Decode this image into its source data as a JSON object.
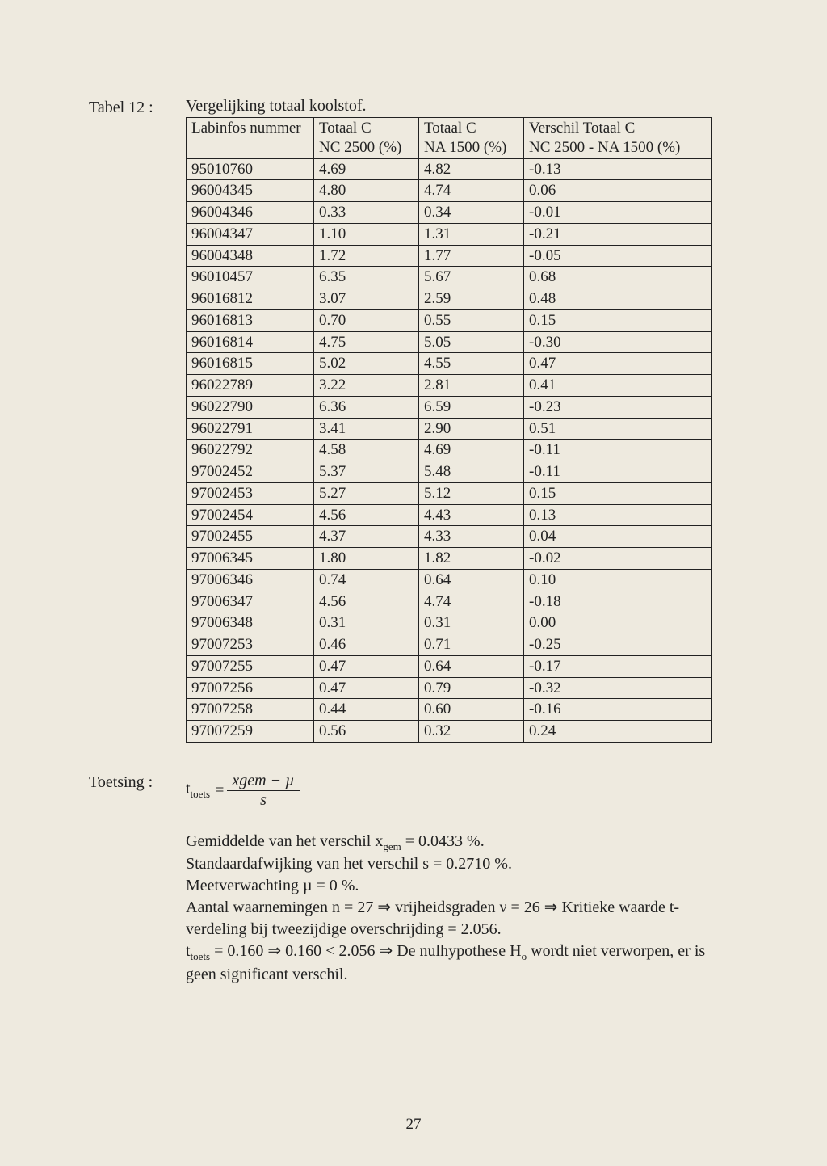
{
  "table": {
    "label": "Tabel 12 :",
    "caption": "Vergelijking totaal koolstof.",
    "headers": {
      "c1a": "Labinfos nummer",
      "c2a": "Totaal C",
      "c2b": "NC 2500 (%)",
      "c3a": "Totaal C",
      "c3b": "NA 1500 (%)",
      "c4a": "Verschil Totaal C",
      "c4b": "NC 2500 - NA 1500 (%)"
    },
    "rows": [
      [
        "95010760",
        "4.69",
        "4.82",
        "-0.13"
      ],
      [
        "96004345",
        "4.80",
        "4.74",
        "0.06"
      ],
      [
        "96004346",
        "0.33",
        "0.34",
        "-0.01"
      ],
      [
        "96004347",
        "1.10",
        "1.31",
        "-0.21"
      ],
      [
        "96004348",
        "1.72",
        "1.77",
        "-0.05"
      ],
      [
        "96010457",
        "6.35",
        "5.67",
        "0.68"
      ],
      [
        "96016812",
        "3.07",
        "2.59",
        "0.48"
      ],
      [
        "96016813",
        "0.70",
        "0.55",
        "0.15"
      ],
      [
        "96016814",
        "4.75",
        "5.05",
        "-0.30"
      ],
      [
        "96016815",
        "5.02",
        "4.55",
        "0.47"
      ],
      [
        "96022789",
        "3.22",
        "2.81",
        "0.41"
      ],
      [
        "96022790",
        "6.36",
        "6.59",
        "-0.23"
      ],
      [
        "96022791",
        "3.41",
        "2.90",
        "0.51"
      ],
      [
        "96022792",
        "4.58",
        "4.69",
        "-0.11"
      ],
      [
        "97002452",
        "5.37",
        "5.48",
        "-0.11"
      ],
      [
        "97002453",
        "5.27",
        "5.12",
        "0.15"
      ],
      [
        "97002454",
        "4.56",
        "4.43",
        "0.13"
      ],
      [
        "97002455",
        "4.37",
        "4.33",
        "0.04"
      ],
      [
        "97006345",
        "1.80",
        "1.82",
        "-0.02"
      ],
      [
        "97006346",
        "0.74",
        "0.64",
        "0.10"
      ],
      [
        "97006347",
        "4.56",
        "4.74",
        "-0.18"
      ],
      [
        "97006348",
        "0.31",
        "0.31",
        "0.00"
      ],
      [
        "97007253",
        "0.46",
        "0.71",
        "-0.25"
      ],
      [
        "97007255",
        "0.47",
        "0.64",
        "-0.17"
      ],
      [
        "97007256",
        "0.47",
        "0.79",
        "-0.32"
      ],
      [
        "97007258",
        "0.44",
        "0.60",
        "-0.16"
      ],
      [
        "97007259",
        "0.56",
        "0.32",
        "0.24"
      ]
    ]
  },
  "toetsing": {
    "label": "Toetsing :",
    "lhs_main": "t",
    "lhs_sub": "toets",
    "eq": " = ",
    "num": "xgem − µ",
    "den": "s"
  },
  "stats": {
    "l1a": "Gemiddelde van het verschil x",
    "l1sub": "gem",
    "l1b": " = 0.0433 %.",
    "l2": "Standaardafwijking van het verschil s = 0.2710 %.",
    "l3": "Meetverwachting µ = 0 %.",
    "l4": "Aantal waarnemingen n = 27 ⇒ vrijheidsgraden ν = 26 ⇒ Kritieke waarde t-verdeling bij tweezijdige overschrijding = 2.056.",
    "l5a": "t",
    "l5sub": "toets",
    "l5b": " = 0.160 ⇒ 0.160 < 2.056 ⇒ De nulhypothese H",
    "l5sub2": "o",
    "l5c": " wordt niet verworpen, er is geen significant verschil."
  },
  "pagenum": "27"
}
